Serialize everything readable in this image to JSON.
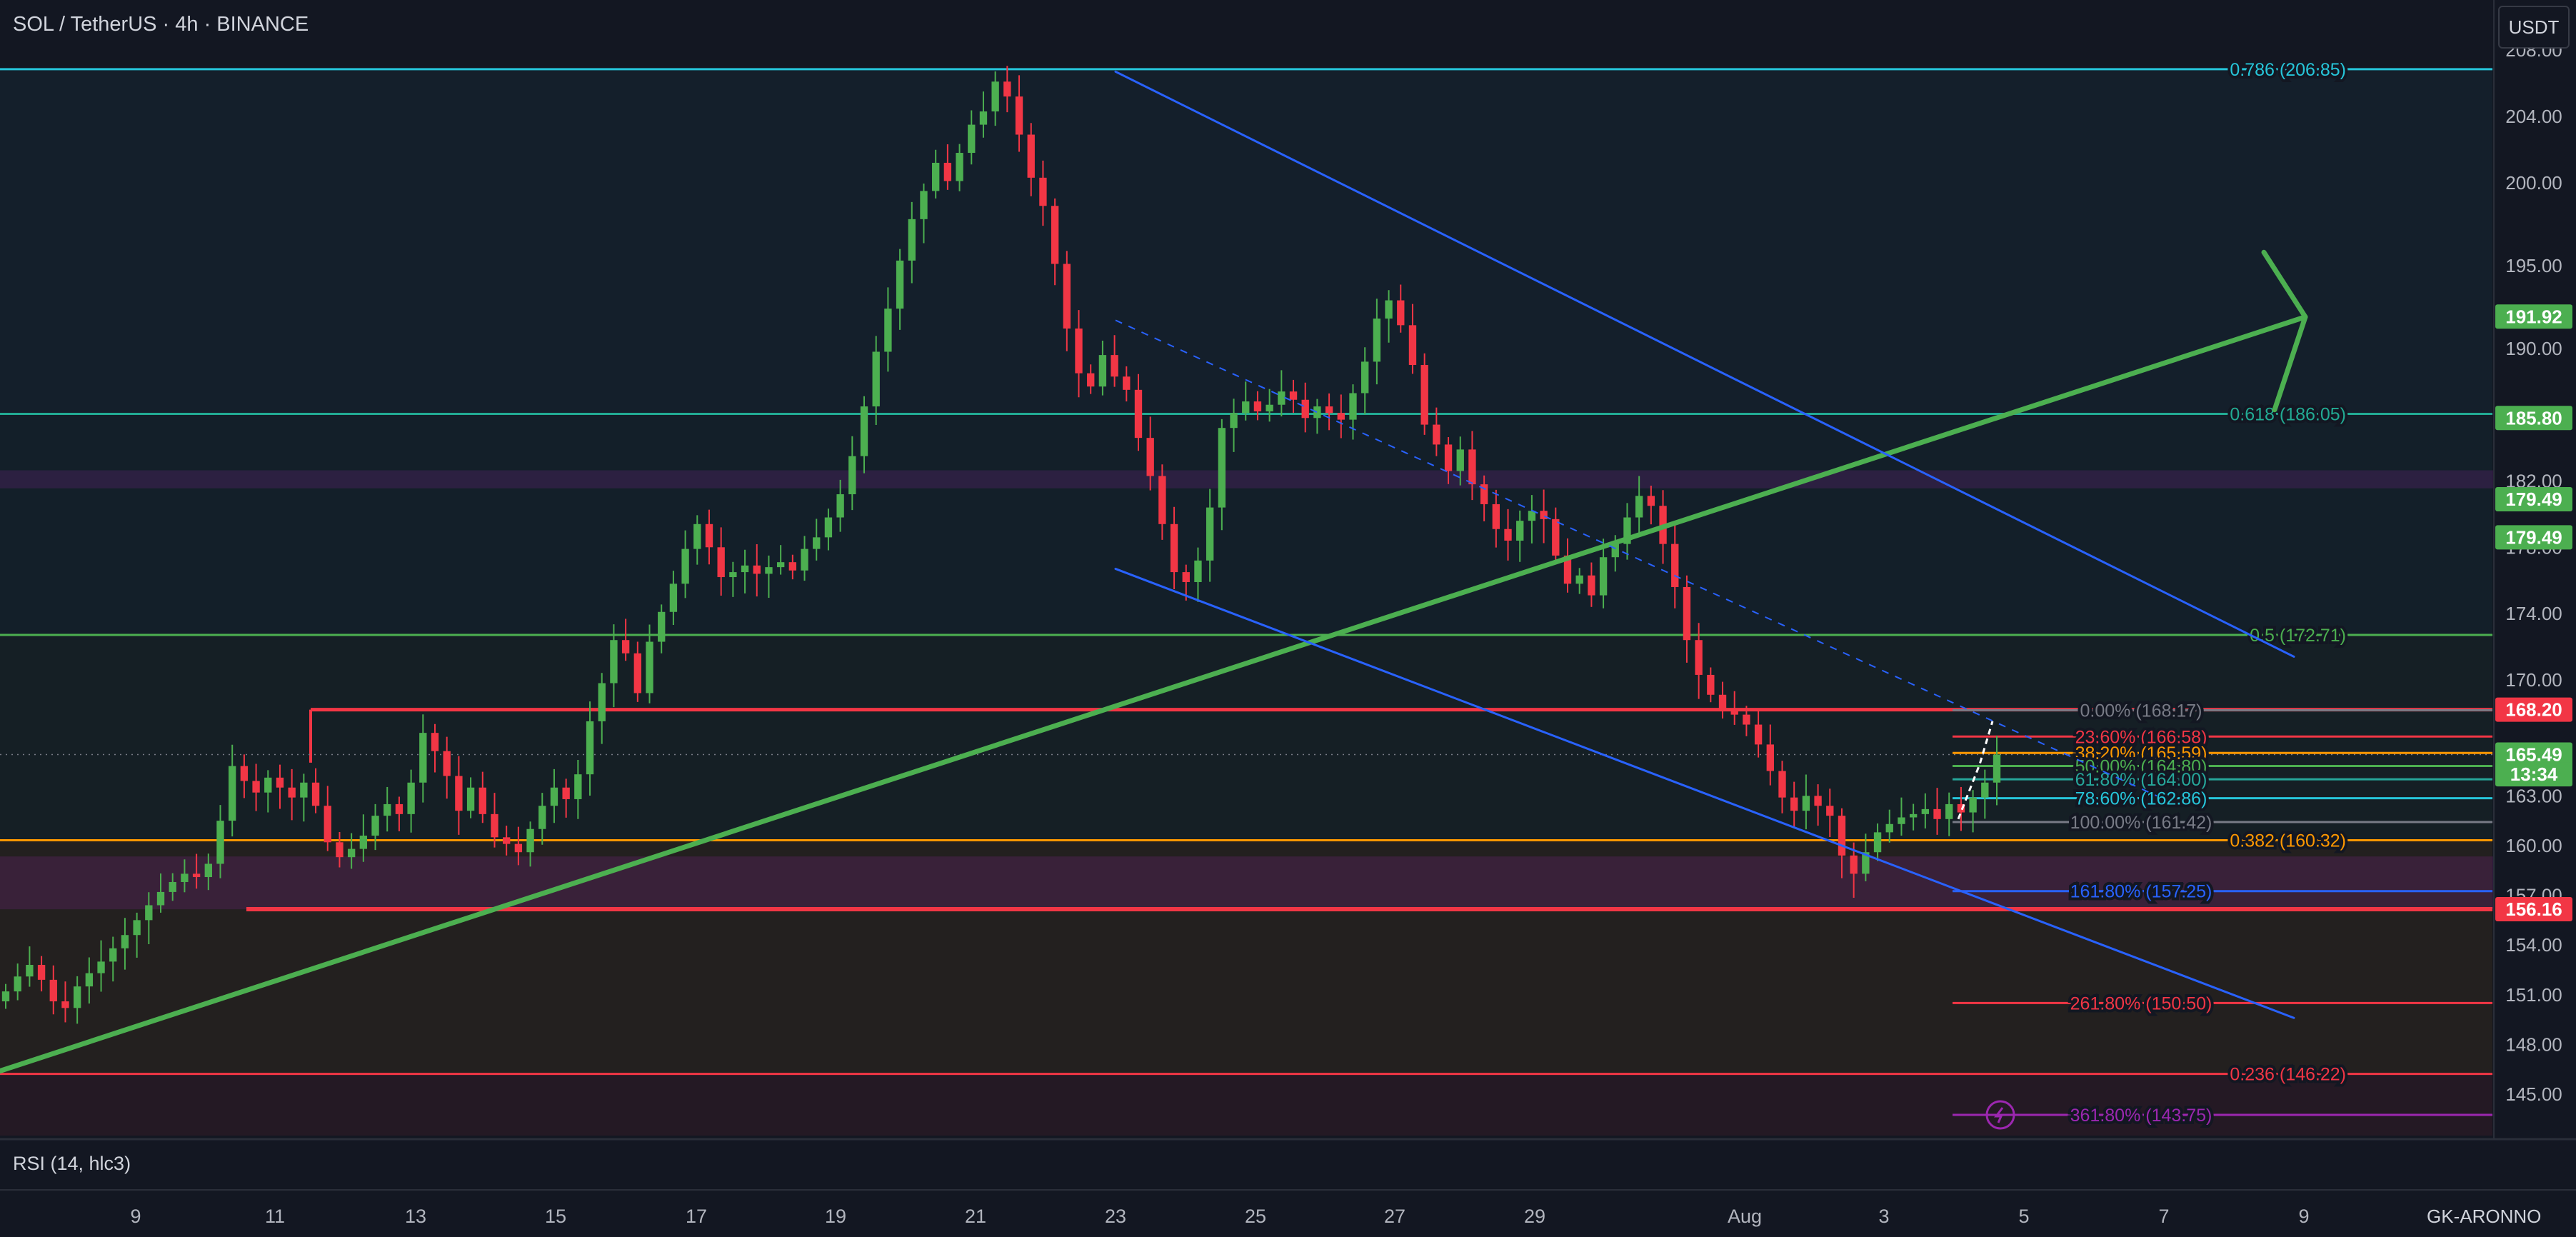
{
  "header": {
    "symbol": "SOL / TetherUS · 4h · BINANCE"
  },
  "currency_button": {
    "label": "USDT"
  },
  "indicator": {
    "label": "RSI (14, hlc3)"
  },
  "brand": {
    "label": "GK-ARONNO"
  },
  "colors": {
    "bg": "#131722",
    "up": "#26a69a",
    "upbar": "#4caf50",
    "down": "#f23645",
    "teal": "#22ab94",
    "cyan": "#26c6da",
    "blue": "#2962ff",
    "green": "#4caf50",
    "orange": "#ff9800",
    "purple": "#9c27b0",
    "red": "#f23645",
    "gray": "#787b86"
  },
  "chart_data": {
    "type": "candlestick",
    "y_axis": {
      "min": 142.5,
      "max": 209.3,
      "ticks": [
        "208.00",
        "204.00",
        "200.00",
        "195.00",
        "190.00",
        "182.00",
        "178.00",
        "174.00",
        "170.00",
        "163.00",
        "160.00",
        "157.00",
        "154.00",
        "151.00",
        "148.00",
        "145.00"
      ]
    },
    "x_axis": {
      "ticks": [
        "9",
        "11",
        "13",
        "15",
        "17",
        "19",
        "21",
        "23",
        "25",
        "27",
        "29",
        "Aug",
        "3",
        "5",
        "7",
        "9"
      ]
    },
    "price_badges": [
      {
        "value": "191.92",
        "price": 191.92,
        "color": "#4caf50"
      },
      {
        "value": "185.80",
        "price": 185.8,
        "color": "#4caf50"
      },
      {
        "value": "179.49",
        "price": 180.9,
        "color": "#4caf50"
      },
      {
        "value": "179.49",
        "price": 178.6,
        "color": "#4caf50"
      },
      {
        "value": "168.20",
        "price": 168.2,
        "color": "#f23645"
      },
      {
        "value": "165.49",
        "price": 165.49,
        "color": "#4caf50"
      },
      {
        "value": "13:34",
        "price": 164.3,
        "color": "#4caf50"
      },
      {
        "value": "156.16",
        "price": 156.16,
        "color": "#f23645"
      }
    ],
    "fib_levels_full": [
      {
        "label": "0.786 (206.85)",
        "price": 206.85,
        "color": "#26c6da"
      },
      {
        "label": "0.618 (186.05)",
        "price": 186.05,
        "color": "#22ab94"
      },
      {
        "label": "0.5 (172.71)",
        "price": 172.71,
        "color": "#4caf50"
      },
      {
        "label": "0.382 (160.32)",
        "price": 160.32,
        "color": "#ff9800"
      },
      {
        "label": "0.236 (146.22)",
        "price": 146.22,
        "color": "#f23645"
      }
    ],
    "fib_extension": [
      {
        "label": "0.00% (168.17)",
        "price": 168.17,
        "color": "#787b86"
      },
      {
        "label": "23.60% (166.58)",
        "price": 166.58,
        "color": "#f23645"
      },
      {
        "label": "38.20% (165.59)",
        "price": 165.59,
        "color": "#ff9800"
      },
      {
        "label": "50.00% (164.80)",
        "price": 164.8,
        "color": "#4caf50"
      },
      {
        "label": "61.80% (164.00)",
        "price": 164.0,
        "color": "#26a69a"
      },
      {
        "label": "78.60% (162.86)",
        "price": 162.86,
        "color": "#26c6da"
      },
      {
        "label": "100.00% (161.42)",
        "price": 161.42,
        "color": "#787b86"
      },
      {
        "label": "161.80% (157.25)",
        "price": 157.25,
        "color": "#2962ff"
      },
      {
        "label": "261.80% (150.50)",
        "price": 150.5,
        "color": "#f23645"
      },
      {
        "label": "361.80% (143.75)",
        "price": 143.75,
        "color": "#9c27b0"
      }
    ],
    "candles_close": [
      151.2,
      152.1,
      152.8,
      151.9,
      150.6,
      150.2,
      151.5,
      152.3,
      153.0,
      153.8,
      154.6,
      155.5,
      156.4,
      157.2,
      157.8,
      158.3,
      158.1,
      158.9,
      161.5,
      164.8,
      163.9,
      163.2,
      164.1,
      163.5,
      162.9,
      163.8,
      162.4,
      160.2,
      159.3,
      159.8,
      160.6,
      161.8,
      162.5,
      161.9,
      163.8,
      166.8,
      165.7,
      164.2,
      162.1,
      163.5,
      161.9,
      160.5,
      160.1,
      159.6,
      161.0,
      162.4,
      163.5,
      162.8,
      164.3,
      167.5,
      169.8,
      172.4,
      171.6,
      169.2,
      172.3,
      174.1,
      175.8,
      177.9,
      179.4,
      178.0,
      176.2,
      176.5,
      176.9,
      176.4,
      176.8,
      177.1,
      176.6,
      177.9,
      178.6,
      179.8,
      181.2,
      183.5,
      186.5,
      189.8,
      192.4,
      195.3,
      197.8,
      199.5,
      201.2,
      200.1,
      201.8,
      203.5,
      204.3,
      206.1,
      205.2,
      202.9,
      200.3,
      198.6,
      195.1,
      191.2,
      188.5,
      187.7,
      189.6,
      188.3,
      187.5,
      184.6,
      182.3,
      179.4,
      176.5,
      175.9,
      177.2,
      180.4,
      185.2,
      186.1,
      186.8,
      186.2,
      186.6,
      187.4,
      186.9,
      185.8,
      186.5,
      186.1,
      185.7,
      187.3,
      189.2,
      191.8,
      192.9,
      191.4,
      189.0,
      185.4,
      184.2,
      182.6,
      183.9,
      181.8,
      180.6,
      179.1,
      178.4,
      179.6,
      180.2,
      179.7,
      177.5,
      175.8,
      176.3,
      175.1,
      177.4,
      178.2,
      179.8,
      181.1,
      180.5,
      178.2,
      175.6,
      172.4,
      170.3,
      169.1,
      168.2,
      167.9,
      167.3,
      166.1,
      164.5,
      162.9,
      162.1,
      163.0,
      162.4,
      161.8,
      159.4,
      158.3,
      159.6,
      160.8,
      161.3,
      161.7,
      161.9,
      162.2,
      161.6,
      162.5,
      162.0,
      162.9,
      163.8,
      165.49
    ],
    "trendlines": [
      {
        "name": "uptrend",
        "color": "#4caf50",
        "from": [
          0,
          146.4
        ],
        "to": [
          3228,
          191.9
        ]
      },
      {
        "name": "channel-top",
        "color": "#2962ff",
        "from": [
          1562,
          206.7
        ],
        "to": [
          3212,
          171.4
        ]
      },
      {
        "name": "channel-bottom",
        "color": "#2962ff",
        "from": [
          1562,
          176.7
        ],
        "to": [
          3212,
          149.6
        ]
      }
    ],
    "zones": [
      {
        "name": "resistance-band",
        "from": 181.6,
        "to": 182.6,
        "color": "#9c27b0"
      },
      {
        "name": "support-band",
        "from": 156.2,
        "to": 159.3,
        "color": "#9c27b0"
      }
    ]
  }
}
